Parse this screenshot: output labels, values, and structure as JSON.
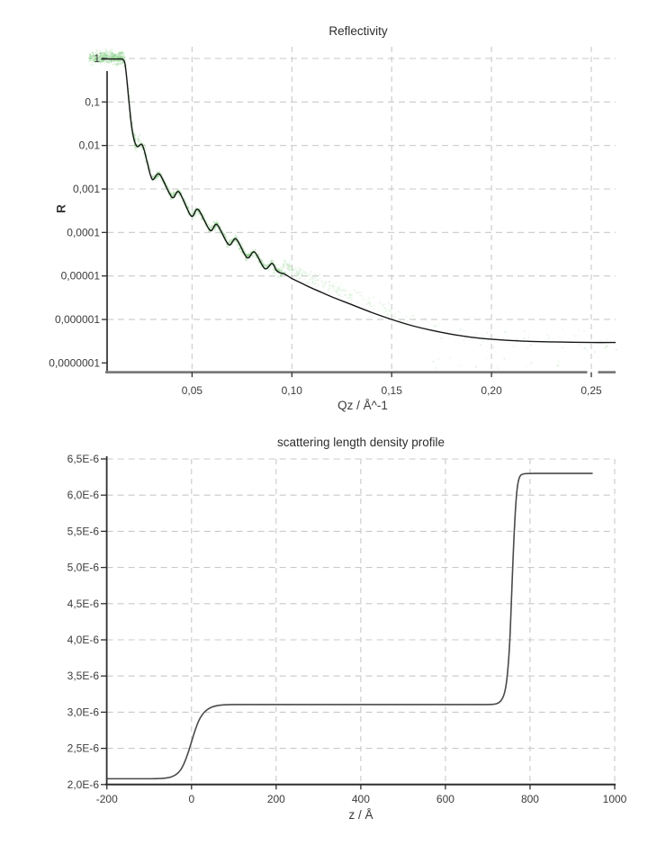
{
  "page": {
    "background": "#ffffff"
  },
  "chart_data": [
    {
      "id": "reflectivity",
      "type": "line",
      "title": "Reflectivity",
      "xlabel": "Qz / Å^-1",
      "ylabel": "R",
      "x_axis": {
        "min": 0,
        "max": 0.2622,
        "ticks": [
          {
            "v": 0.05,
            "label": "0,05"
          },
          {
            "v": 0.1,
            "label": "0,10"
          },
          {
            "v": 0.15,
            "label": "0,15"
          },
          {
            "v": 0.2,
            "label": "0,20"
          },
          {
            "v": 0.25,
            "label": "0,25"
          }
        ]
      },
      "y_axis": {
        "scale": "log",
        "min": 1e-07,
        "max": 1,
        "ticks": [
          {
            "log10": 0,
            "label": "1",
            "grid": true
          },
          {
            "log10": -1,
            "label": "0,1",
            "grid": true
          },
          {
            "log10": -2,
            "label": "0,01",
            "grid": true
          },
          {
            "log10": -3,
            "label": "0,001",
            "grid": true
          },
          {
            "log10": -4,
            "label": "0,0001",
            "grid": true
          },
          {
            "log10": -5,
            "label": "0,00001",
            "grid": true
          },
          {
            "log10": -6,
            "label": "0,000001",
            "grid": true
          },
          {
            "log10": -7,
            "label": "0,0000001",
            "grid": false
          }
        ]
      },
      "series": [
        {
          "name": "fit-curve",
          "type": "line",
          "color": "#161616",
          "points_q_log10R": [
            [
              0.0045,
              -0.012
            ],
            [
              0.009,
              -0.012
            ],
            [
              0.014,
              -0.012
            ],
            [
              0.0152,
              -0.02
            ],
            [
              0.0163,
              -0.1
            ],
            [
              0.0172,
              -0.42
            ],
            [
              0.0183,
              -0.95
            ],
            [
              0.0196,
              -1.52
            ],
            [
              0.0207,
              -1.82
            ],
            [
              0.0216,
              -1.96
            ],
            [
              0.0227,
              -2.03
            ],
            [
              0.0247,
              -1.97
            ],
            [
              0.0261,
              -2.12
            ],
            [
              0.0275,
              -2.38
            ],
            [
              0.0301,
              -2.78
            ],
            [
              0.0337,
              -2.66
            ],
            [
              0.0399,
              -3.19
            ],
            [
              0.0435,
              -3.07
            ],
            [
              0.0495,
              -3.62
            ],
            [
              0.053,
              -3.47
            ],
            [
              0.059,
              -3.95
            ],
            [
              0.0625,
              -3.82
            ],
            [
              0.0683,
              -4.28
            ],
            [
              0.0721,
              -4.15
            ],
            [
              0.0775,
              -4.58
            ],
            [
              0.0813,
              -4.45
            ],
            [
              0.0864,
              -4.83
            ],
            [
              0.0901,
              -4.71
            ],
            [
              0.0922,
              -4.87
            ],
            [
              0.0942,
              -4.93
            ],
            [
              0.0965,
              -4.96
            ],
            [
              0.1,
              -5.06
            ],
            [
              0.105,
              -5.17
            ],
            [
              0.11,
              -5.28
            ],
            [
              0.115,
              -5.38
            ],
            [
              0.12,
              -5.48
            ],
            [
              0.13,
              -5.66
            ],
            [
              0.14,
              -5.84
            ],
            [
              0.15,
              -6.0
            ],
            [
              0.16,
              -6.14
            ],
            [
              0.17,
              -6.25
            ],
            [
              0.18,
              -6.34
            ],
            [
              0.19,
              -6.41
            ],
            [
              0.2,
              -6.455
            ],
            [
              0.21,
              -6.485
            ],
            [
              0.22,
              -6.505
            ],
            [
              0.235,
              -6.52
            ],
            [
              0.25,
              -6.53
            ],
            [
              0.2622,
              -6.53
            ]
          ]
        },
        {
          "name": "measured-data",
          "type": "scatter",
          "color": "#6ec46e",
          "seed": 987654321,
          "count": 2600,
          "description": "noisy measured reflectivity data cloud around the fit curve"
        }
      ]
    },
    {
      "id": "sld",
      "type": "line",
      "title": "scattering length density profile",
      "xlabel": "z / Å",
      "ylabel": "",
      "x_axis": {
        "min": -200,
        "max": 1000,
        "ticks": [
          {
            "v": -200,
            "label": "-200"
          },
          {
            "v": 0,
            "label": "0"
          },
          {
            "v": 200,
            "label": "200"
          },
          {
            "v": 400,
            "label": "400"
          },
          {
            "v": 600,
            "label": "600"
          },
          {
            "v": 800,
            "label": "800"
          },
          {
            "v": 1000,
            "label": "1000"
          }
        ]
      },
      "y_axis": {
        "scale": "linear",
        "min": 2e-06,
        "max": 6.5e-06,
        "ticks": [
          {
            "v": 6.5,
            "label": "6,5E-6",
            "grid": true
          },
          {
            "v": 6.0,
            "label": "6,0E-6",
            "grid": true
          },
          {
            "v": 5.5,
            "label": "5,5E-6",
            "grid": true
          },
          {
            "v": 5.0,
            "label": "5,0E-6",
            "grid": true
          },
          {
            "v": 4.5,
            "label": "4,5E-6",
            "grid": true
          },
          {
            "v": 4.0,
            "label": "4,0E-6",
            "grid": true
          },
          {
            "v": 3.5,
            "label": "3,5E-6",
            "grid": true
          },
          {
            "v": 3.0,
            "label": "3,0E-6",
            "grid": true
          },
          {
            "v": 2.5,
            "label": "2,5E-6",
            "grid": true
          },
          {
            "v": 2.0,
            "label": "2,0E-6",
            "grid": false
          }
        ]
      },
      "series": [
        {
          "name": "sld-profile",
          "type": "line",
          "color": "#4a4a4a",
          "points_z_sld1e6": [
            [
              -200,
              2.08
            ],
            [
              -100,
              2.08
            ],
            [
              -75,
              2.083
            ],
            [
              -60,
              2.09
            ],
            [
              -48,
              2.105
            ],
            [
              -36,
              2.14
            ],
            [
              -26,
              2.2
            ],
            [
              -17,
              2.3
            ],
            [
              -8,
              2.44
            ],
            [
              0,
              2.59
            ],
            [
              8,
              2.74
            ],
            [
              17,
              2.88
            ],
            [
              26,
              2.97
            ],
            [
              36,
              3.03
            ],
            [
              48,
              3.07
            ],
            [
              60,
              3.09
            ],
            [
              75,
              3.1
            ],
            [
              100,
              3.105
            ],
            [
              200,
              3.105
            ],
            [
              350,
              3.105
            ],
            [
              500,
              3.105
            ],
            [
              620,
              3.105
            ],
            [
              690,
              3.105
            ],
            [
              712,
              3.108
            ],
            [
              722,
              3.12
            ],
            [
              730,
              3.15
            ],
            [
              737,
              3.22
            ],
            [
              742,
              3.33
            ],
            [
              746,
              3.5
            ],
            [
              750,
              3.78
            ],
            [
              753,
              4.1
            ],
            [
              756,
              4.55
            ],
            [
              759,
              5.0
            ],
            [
              762,
              5.42
            ],
            [
              765,
              5.75
            ],
            [
              768,
              6.0
            ],
            [
              771,
              6.15
            ],
            [
              774,
              6.23
            ],
            [
              778,
              6.275
            ],
            [
              783,
              6.29
            ],
            [
              790,
              6.297
            ],
            [
              810,
              6.3
            ],
            [
              870,
              6.3
            ],
            [
              948,
              6.3
            ]
          ]
        }
      ]
    }
  ],
  "style": {
    "grid_color": "#c9c9c9",
    "axis_color": "#2f2f2f",
    "top_axis_color": "#7a7a7a",
    "tick_label_color": "#3c3c3c"
  }
}
